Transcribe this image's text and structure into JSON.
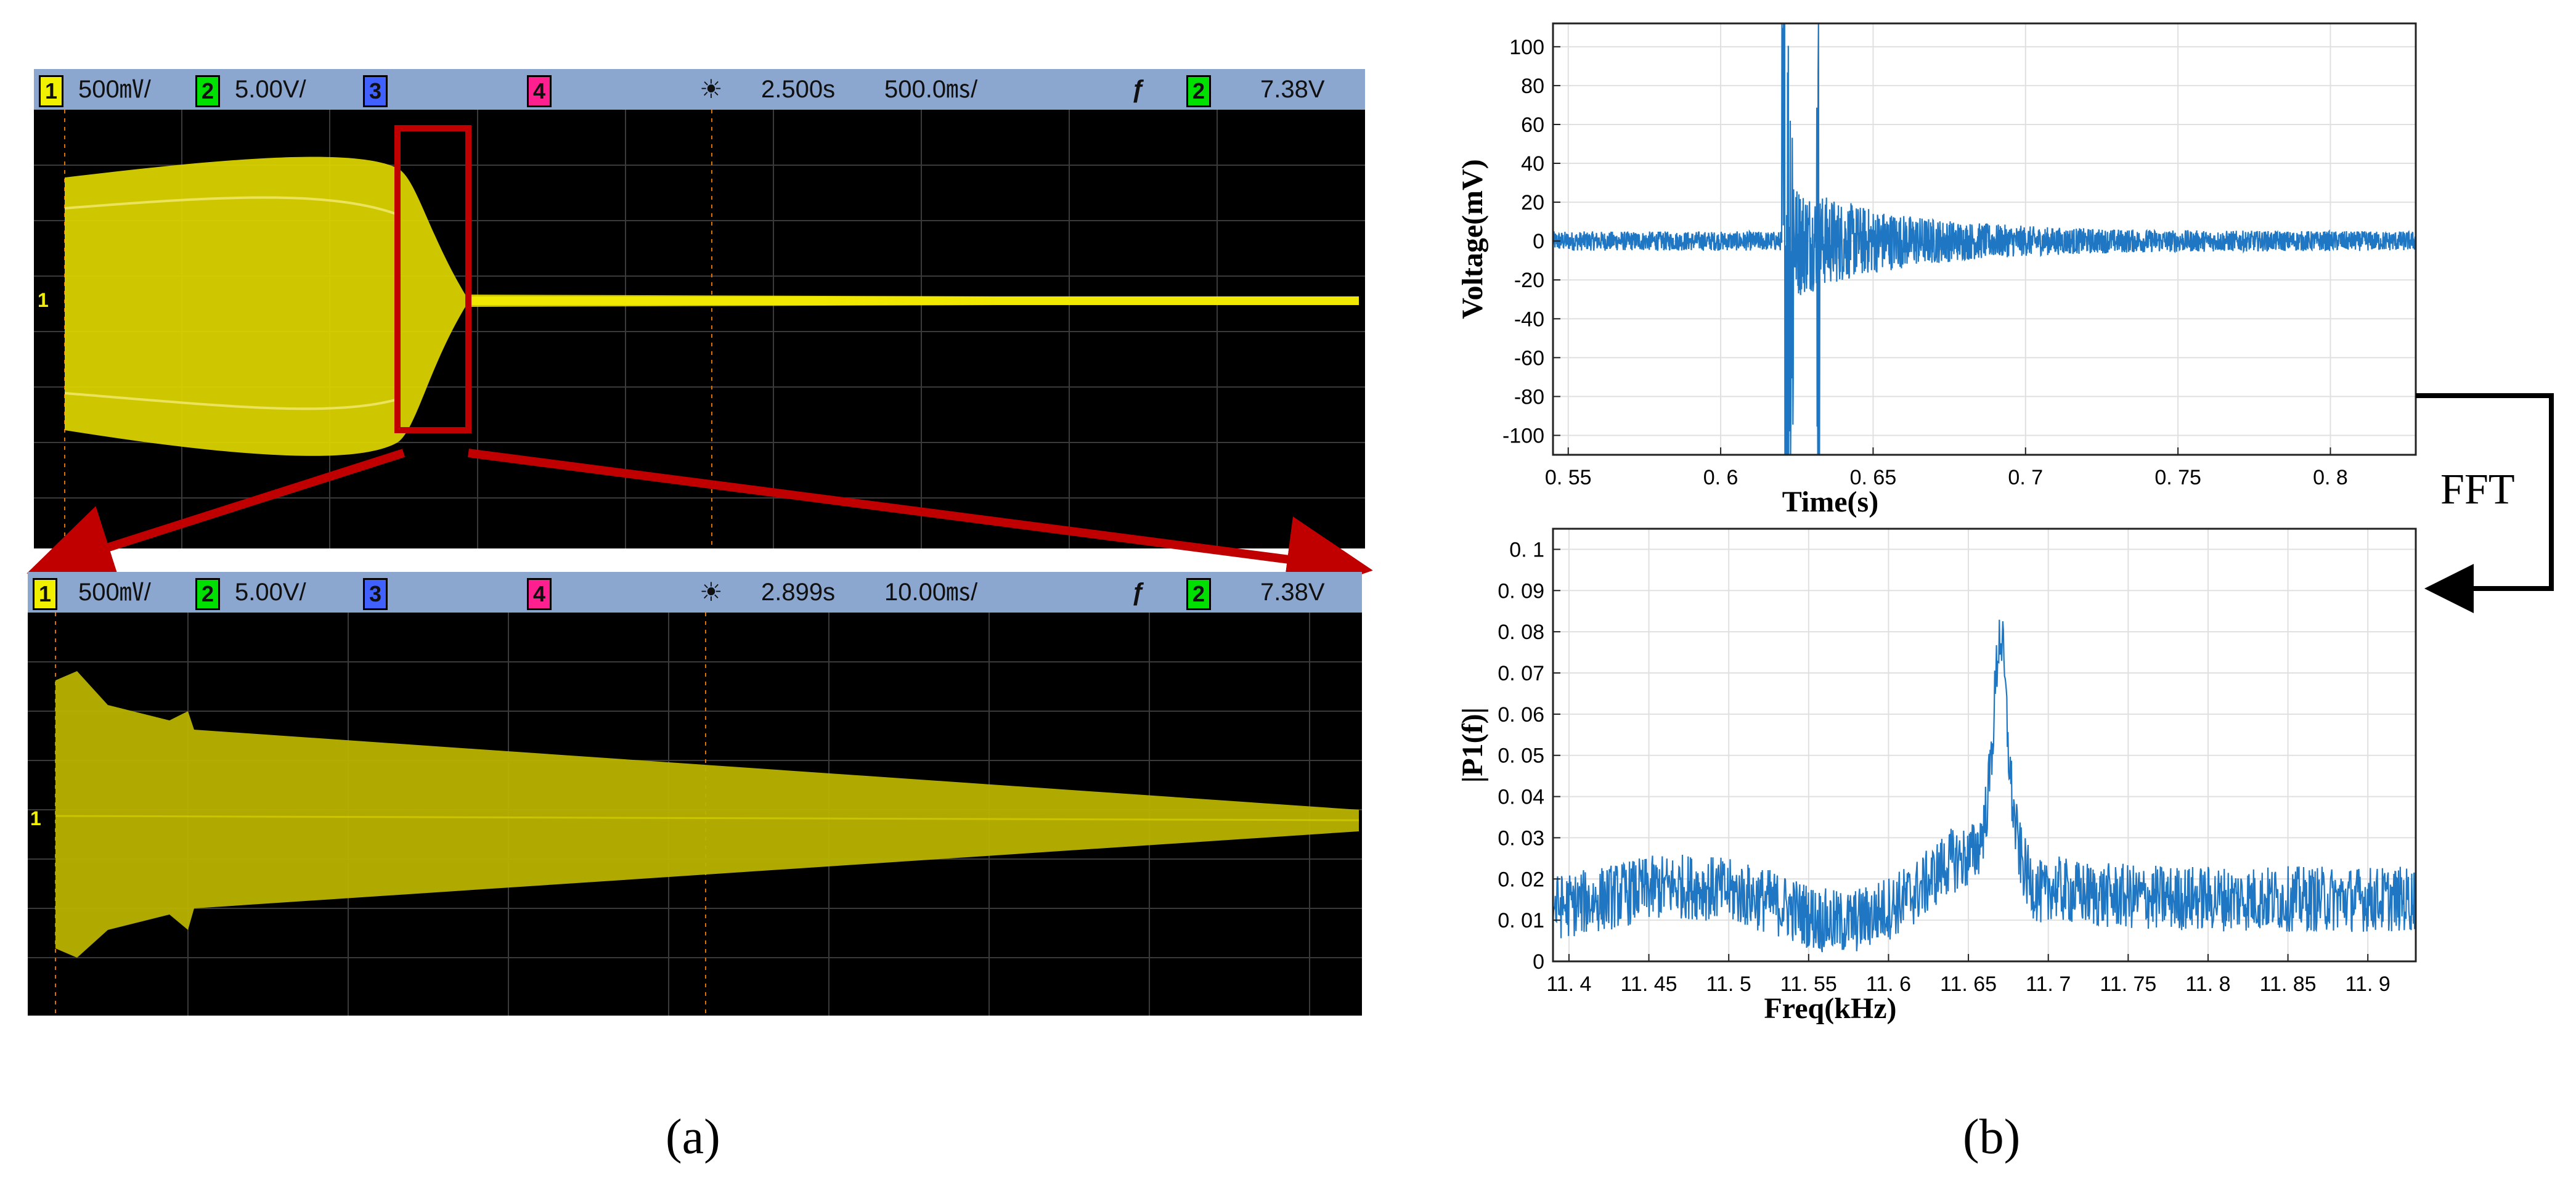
{
  "panel_a": {
    "caption": "(a)",
    "scope_top": {
      "status": {
        "ch1_num": "1",
        "ch1_scale": "500㎷/",
        "ch2_num": "2",
        "ch2_scale": "5.00V/",
        "ch3_num": "3",
        "ch4_num": "4",
        "timebase_delay": "2.500s",
        "timebase_scale": "500.0㎳/",
        "trigger_source": "2",
        "trigger_level": "7.38V"
      },
      "marker_label": "1"
    },
    "scope_bottom": {
      "status": {
        "ch1_num": "1",
        "ch1_scale": "500㎷/",
        "ch2_num": "2",
        "ch2_scale": "5.00V/",
        "ch3_num": "3",
        "ch4_num": "4",
        "timebase_delay": "2.899s",
        "timebase_scale": "10.00㎳/",
        "trigger_source": "2",
        "trigger_level": "7.38V"
      },
      "marker_label": "1"
    },
    "colors": {
      "scope_trace": "#e8e000",
      "scope_trace_dim": "#b8b200",
      "zoom_box": "#c00000",
      "status_bar": "#8ba6cf",
      "ch1": "#f0f000",
      "ch2": "#00e000",
      "ch3": "#4060ff",
      "ch4": "#ff2090"
    }
  },
  "panel_b": {
    "caption": "(b)",
    "fft_label": "FFT"
  },
  "chart_data": [
    {
      "type": "line",
      "name": "time-domain",
      "xlabel": "Time(s)",
      "ylabel": "Voltage(mV)",
      "xlim": [
        0.545,
        0.828
      ],
      "ylim": [
        -110,
        112
      ],
      "xticks": [
        0.55,
        0.6,
        0.65,
        0.7,
        0.75,
        0.8
      ],
      "xtick_labels": [
        "0. 55",
        "0. 6",
        "0. 65",
        "0. 7",
        "0. 75",
        "0. 8"
      ],
      "yticks": [
        -100,
        -80,
        -60,
        -40,
        -20,
        0,
        20,
        40,
        60,
        80,
        100
      ],
      "ytick_labels": [
        "-100",
        "-80",
        "-60",
        "-40",
        "-20",
        "0",
        "20",
        "40",
        "60",
        "80",
        "100"
      ],
      "series_color": "#1f77c4",
      "baseline_noise_mv": 5,
      "impulse_time_s": 0.62,
      "impulse_peak_mv": 112,
      "decay_amplitude_mv": 25,
      "grid": true
    },
    {
      "type": "line",
      "name": "spectrum",
      "xlabel": "Freq(kHz)",
      "ylabel": "|P1(f)|",
      "xlim": [
        11.39,
        11.93
      ],
      "ylim": [
        0,
        0.105
      ],
      "xticks": [
        11.4,
        11.45,
        11.5,
        11.55,
        11.6,
        11.65,
        11.7,
        11.75,
        11.8,
        11.85,
        11.9
      ],
      "xtick_labels": [
        "11. 4",
        "11. 45",
        "11. 5",
        "11. 55",
        "11. 6",
        "11. 65",
        "11. 7",
        "11. 75",
        "11. 8",
        "11. 85",
        "11. 9"
      ],
      "yticks": [
        0,
        0.01,
        0.02,
        0.03,
        0.04,
        0.05,
        0.06,
        0.07,
        0.08,
        0.09,
        0.1
      ],
      "ytick_labels": [
        "0",
        "0. 01",
        "0. 02",
        "0. 03",
        "0. 04",
        "0. 05",
        "0. 06",
        "0. 07",
        "0. 08",
        "0. 09",
        "0. 1"
      ],
      "series_color": "#1f77c4",
      "peak_freq_khz": 11.67,
      "peak_value": 0.084,
      "grid": true
    }
  ]
}
